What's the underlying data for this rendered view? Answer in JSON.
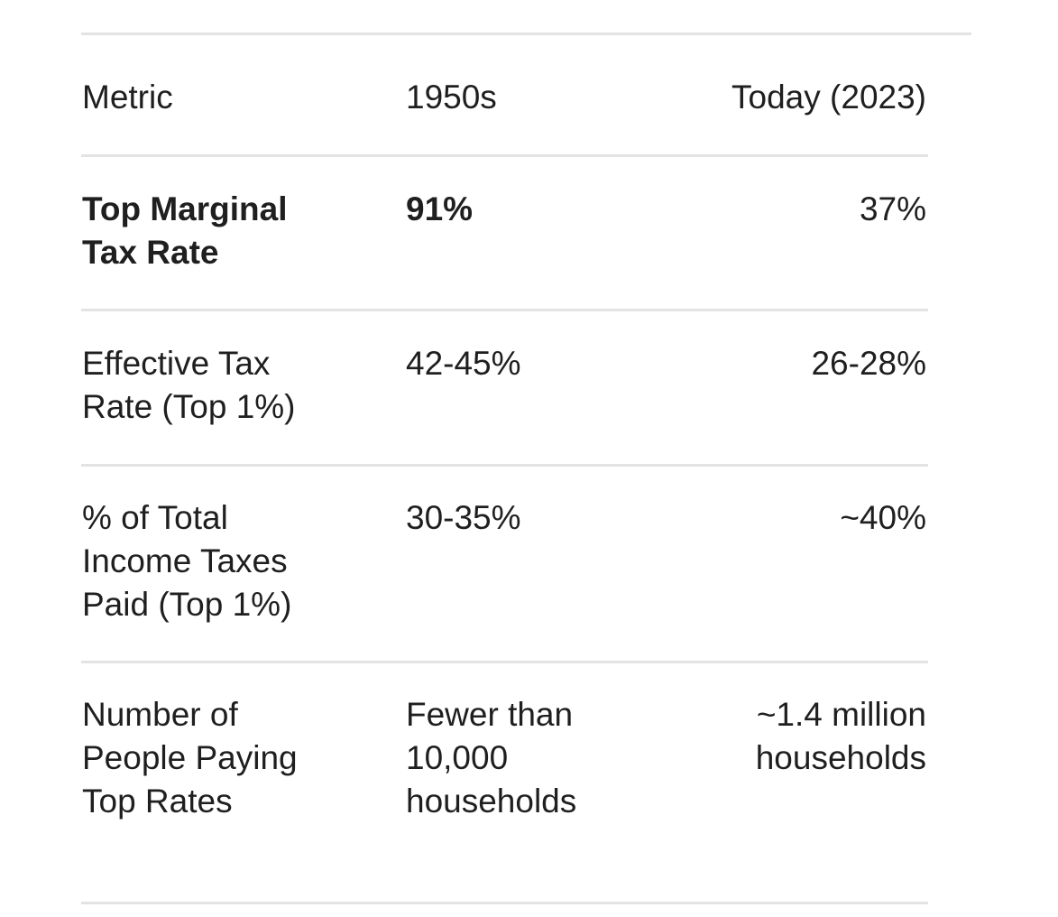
{
  "table": {
    "header": [
      "Metric",
      "1950s",
      "Today (2023)"
    ],
    "rows": [
      [
        "Top Marginal Tax Rate",
        "91%",
        "37%"
      ],
      [
        "Effective Tax Rate (Top 1%)",
        "42-45%",
        "26-28%"
      ],
      [
        "% of Total Income Taxes Paid (Top 1%)",
        "30-35%",
        "~40%"
      ],
      [
        "Number of People Paying Top Rates",
        "Fewer than 10,000 households",
        "~1.4 million households"
      ]
    ]
  }
}
